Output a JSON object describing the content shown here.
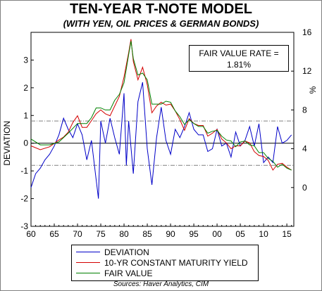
{
  "title": "TEN-YEAR T-NOTE MODEL",
  "subtitle": "(WITH YEN, OIL PRICES & GERMAN BONDS)",
  "annotation": {
    "line1": "FAIR VALUE RATE =",
    "line2": "1.81%"
  },
  "source": "Sources:  Haver Analytics, CIM",
  "colors": {
    "deviation": "#0000c8",
    "yield": "#d40000",
    "fair_value": "#008000",
    "plot_bg": "#ffffff",
    "band": "#808080"
  },
  "chart_data": {
    "type": "line",
    "title": "TEN-YEAR T-NOTE MODEL",
    "subtitle": "(WITH YEN, OIL PRICES & GERMAN BONDS)",
    "xlabel": "",
    "x_ticks": [
      "60",
      "65",
      "70",
      "75",
      "80",
      "85",
      "90",
      "95",
      "00",
      "05",
      "10",
      "15"
    ],
    "x_range": [
      1960,
      2016.5
    ],
    "left_axis": {
      "label": "DEVIATION",
      "ylim": [
        -3,
        4
      ],
      "ticks": [
        "-3",
        "-2",
        "-1",
        "0",
        "1",
        "2",
        "3"
      ]
    },
    "right_axis": {
      "label": "%",
      "ylim": [
        -4,
        16
      ],
      "ticks": [
        "0",
        "4",
        "8",
        "12",
        "16"
      ]
    },
    "reference_lines_left": [
      0.8,
      -0.8
    ],
    "legend_placement": "bottom-center",
    "series": [
      {
        "name": "DEVIATION",
        "axis": "left",
        "x": [
          1960,
          1961,
          1962,
          1963,
          1964,
          1965,
          1966,
          1967,
          1968,
          1969,
          1970,
          1971,
          1972,
          1973,
          1974,
          1974.5,
          1975,
          1976,
          1977,
          1978,
          1979,
          1980,
          1980.5,
          1981,
          1982,
          1983,
          1984,
          1985,
          1986,
          1987,
          1988,
          1989,
          1990,
          1991,
          1992,
          1993,
          1994,
          1995,
          1996,
          1997,
          1998,
          1999,
          2000,
          2001,
          2002,
          2003,
          2004,
          2005,
          2006,
          2007,
          2008,
          2009,
          2010,
          2011,
          2012,
          2013,
          2014,
          2015,
          2016
        ],
        "values": [
          -1.6,
          -1.1,
          -0.9,
          -0.6,
          -0.4,
          -0.1,
          0.3,
          0.9,
          0.5,
          0.2,
          0.7,
          0.3,
          -0.6,
          0.1,
          -1.3,
          -2.0,
          0.8,
          0.0,
          0.9,
          0.2,
          -0.4,
          1.8,
          -0.8,
          0.8,
          -1.1,
          1.5,
          2.2,
          -0.2,
          -1.5,
          0.2,
          1.3,
          0.1,
          -0.4,
          0.5,
          0.2,
          0.6,
          1.1,
          0.5,
          0.3,
          0.3,
          -0.3,
          -0.2,
          0.5,
          -0.1,
          0.0,
          -0.5,
          0.4,
          -0.1,
          0.1,
          0.6,
          -0.1,
          0.7,
          -0.7,
          -0.5,
          -0.7,
          0.6,
          0.0,
          0.1,
          0.3
        ]
      },
      {
        "name": "10-YR CONSTANT MATURITY YIELD",
        "axis": "right",
        "x": [
          1960,
          1962,
          1964,
          1966,
          1967,
          1968,
          1969,
          1970,
          1971,
          1972,
          1973,
          1974,
          1975,
          1976,
          1977,
          1978,
          1979,
          1980,
          1981,
          1981.5,
          1982,
          1983,
          1984,
          1985,
          1986,
          1987,
          1988,
          1989,
          1990,
          1991,
          1992,
          1993,
          1994,
          1995,
          1996,
          1997,
          1998,
          1999,
          2000,
          2001,
          2002,
          2003,
          2004,
          2005,
          2006,
          2007,
          2008,
          2009,
          2010,
          2011,
          2012,
          2013,
          2014,
          2015,
          2016
        ],
        "values": [
          4.3,
          3.9,
          4.2,
          4.9,
          5.2,
          5.7,
          6.7,
          7.4,
          6.2,
          6.2,
          6.9,
          7.6,
          8.0,
          7.6,
          7.4,
          8.4,
          9.4,
          11.4,
          13.9,
          15.3,
          13.0,
          11.1,
          12.4,
          10.6,
          7.7,
          8.4,
          8.8,
          8.5,
          8.6,
          7.9,
          7.0,
          5.9,
          7.1,
          6.6,
          6.4,
          6.4,
          5.3,
          5.6,
          6.0,
          5.0,
          4.6,
          4.0,
          4.3,
          4.3,
          4.8,
          4.6,
          3.7,
          3.3,
          3.2,
          2.8,
          1.8,
          2.4,
          2.5,
          2.1,
          1.8
        ]
      },
      {
        "name": "FAIR VALUE",
        "axis": "right",
        "x": [
          1960,
          1962,
          1964,
          1966,
          1968,
          1970,
          1972,
          1973,
          1974,
          1975,
          1976,
          1977,
          1978,
          1979,
          1980,
          1981,
          1981.5,
          1982,
          1983,
          1984,
          1985,
          1986,
          1987,
          1988,
          1989,
          1990,
          1991,
          1992,
          1993,
          1994,
          1995,
          1996,
          1997,
          1998,
          1999,
          2000,
          2001,
          2002,
          2003,
          2004,
          2005,
          2006,
          2007,
          2008,
          2009,
          2010,
          2011,
          2012,
          2013,
          2014,
          2015,
          2016
        ],
        "values": [
          5.0,
          4.4,
          4.4,
          4.7,
          5.6,
          6.6,
          6.6,
          7.2,
          8.2,
          8.2,
          8.0,
          8.0,
          9.0,
          9.6,
          10.8,
          13.7,
          15.1,
          13.3,
          11.6,
          11.8,
          11.1,
          8.6,
          8.6,
          8.6,
          8.9,
          8.8,
          7.9,
          7.3,
          6.5,
          7.0,
          6.6,
          6.3,
          6.3,
          5.6,
          5.8,
          5.9,
          5.3,
          4.9,
          4.8,
          4.2,
          4.7,
          4.8,
          4.4,
          4.3,
          3.6,
          3.6,
          3.0,
          2.7,
          2.1,
          2.4,
          2.0,
          1.8
        ]
      }
    ]
  }
}
